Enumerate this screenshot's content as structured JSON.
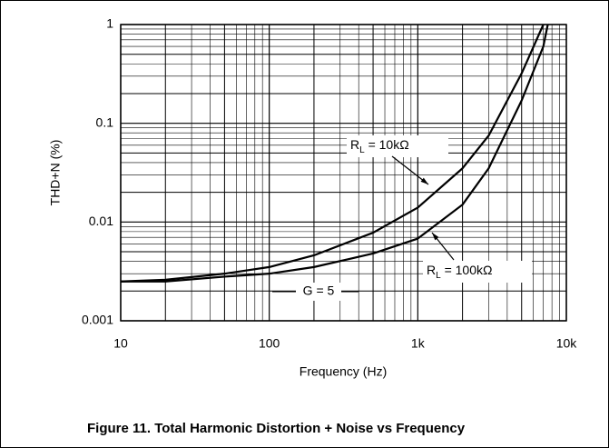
{
  "chart_data": {
    "type": "line",
    "title": "Figure 11. Total Harmonic Distortion + Noise vs Frequency",
    "x_label": "Frequency (Hz)",
    "y_label": "THD+N (%)",
    "annotations": [
      "G = 5"
    ],
    "x": [
      10,
      20,
      50,
      100,
      200,
      500,
      1000,
      2000,
      3000,
      5000,
      7000,
      7500
    ],
    "series": [
      {
        "name": "RL = 10kΩ",
        "color": "#000000",
        "values": [
          0.0025,
          0.0026,
          0.003,
          0.0035,
          0.0046,
          0.0078,
          0.014,
          0.035,
          0.075,
          0.32,
          1.0,
          null
        ]
      },
      {
        "name": "RL = 100kΩ",
        "color": "#000000",
        "values": [
          0.0025,
          0.0025,
          0.0028,
          0.003,
          0.0035,
          0.0048,
          0.0068,
          0.015,
          0.035,
          0.17,
          0.6,
          1.0
        ]
      }
    ],
    "xlim": [
      10,
      10000
    ],
    "ylim": [
      0.001,
      1
    ],
    "xticks": [
      10,
      100,
      {
        "value": 1000,
        "label": "1k"
      },
      {
        "value": 10000,
        "label": "10k"
      }
    ],
    "yticks": [
      0.001,
      0.01,
      0.1,
      1
    ],
    "xscale": "log",
    "yscale": "log",
    "grid": true
  }
}
